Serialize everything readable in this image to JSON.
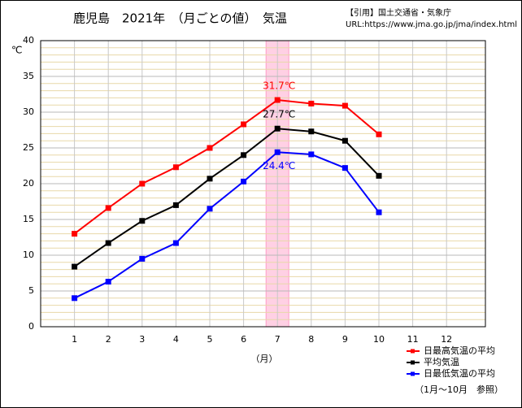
{
  "chart_data": {
    "type": "line",
    "title": "鹿児島　2021年　（月ごとの値）　気温",
    "source": "【引用】国土交通省・気象庁",
    "url": "URL:https://www.jma.go.jp/jma/index.html",
    "y_label": "℃",
    "x_label": "（月）",
    "note": "（1月～10月　参照）",
    "categories": [
      "1",
      "2",
      "3",
      "4",
      "5",
      "6",
      "7",
      "8",
      "9",
      "10",
      "11",
      "12"
    ],
    "highlight": "7",
    "ylim": [
      0,
      40
    ],
    "yticks": [
      0,
      5,
      10,
      15,
      20,
      25,
      30,
      35,
      40
    ],
    "minor_grid": 1,
    "grid": true,
    "series": [
      {
        "name": "日最高気温の平均",
        "color": "#ff0000",
        "values": [
          13.0,
          16.6,
          20.0,
          22.3,
          25.0,
          28.3,
          31.7,
          31.2,
          30.9,
          26.9,
          null,
          null
        ],
        "value_labels": [
          null,
          null,
          null,
          null,
          null,
          null,
          "31.7℃",
          null,
          null,
          null,
          null,
          null
        ]
      },
      {
        "name": "平均気温",
        "color": "#000000",
        "values": [
          8.4,
          11.7,
          14.8,
          17.0,
          20.7,
          24.0,
          27.7,
          27.3,
          26.0,
          21.1,
          null,
          null
        ],
        "value_labels": [
          null,
          null,
          null,
          null,
          null,
          null,
          "27.7℃",
          null,
          null,
          null,
          null,
          null
        ]
      },
      {
        "name": "日最低気温の平均",
        "color": "#0000ff",
        "values": [
          4.0,
          6.3,
          9.5,
          11.7,
          16.5,
          20.3,
          24.4,
          24.1,
          22.2,
          16.0,
          null,
          null
        ],
        "value_labels": [
          null,
          null,
          null,
          null,
          null,
          null,
          "24.4℃",
          null,
          null,
          null,
          null,
          null
        ]
      }
    ]
  }
}
